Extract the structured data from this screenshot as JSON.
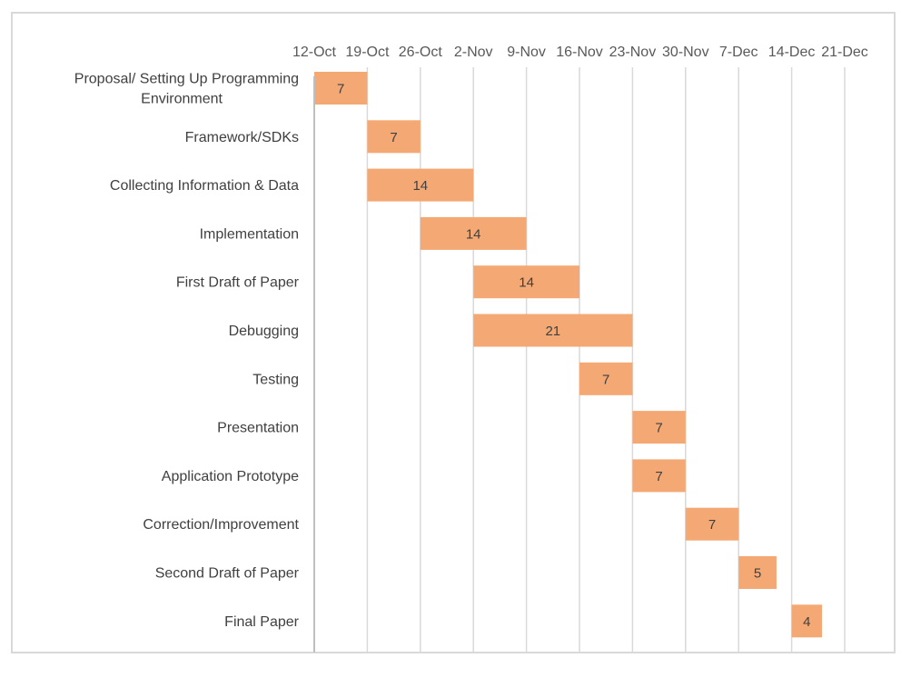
{
  "chart_data": {
    "type": "bar",
    "orientation": "horizontal",
    "x_ticks": [
      "12-Oct",
      "19-Oct",
      "26-Oct",
      "2-Nov",
      "9-Nov",
      "16-Nov",
      "23-Nov",
      "30-Nov",
      "7-Dec",
      "14-Dec",
      "21-Dec"
    ],
    "xlim": [
      "2020-10-12",
      "2020-12-28"
    ],
    "grid": true,
    "legend": "none",
    "bar_color": "#f4a873",
    "tasks": [
      {
        "label": "Proposal/ Setting Up Programming Environment",
        "label_lines": [
          "Proposal/ Setting Up Programming",
          "Environment"
        ],
        "start": "2020-10-12",
        "duration": 7
      },
      {
        "label": "Framework/SDKs",
        "start": "2020-10-19",
        "duration": 7
      },
      {
        "label": "Collecting Information & Data",
        "start": "2020-10-19",
        "duration": 14
      },
      {
        "label": "Implementation",
        "start": "2020-10-26",
        "duration": 14
      },
      {
        "label": "First Draft of  Paper",
        "start": "2020-11-02",
        "duration": 14
      },
      {
        "label": "Debugging",
        "start": "2020-11-02",
        "duration": 21
      },
      {
        "label": "Testing",
        "start": "2020-11-16",
        "duration": 7
      },
      {
        "label": "Presentation",
        "start": "2020-11-23",
        "duration": 7
      },
      {
        "label": "Application Prototype",
        "start": "2020-11-23",
        "duration": 7
      },
      {
        "label": "Correction/Improvement",
        "start": "2020-11-30",
        "duration": 7
      },
      {
        "label": "Second Draft of Paper",
        "start": "2020-12-07",
        "duration": 5
      },
      {
        "label": "Final Paper",
        "start": "2020-12-14",
        "duration": 4
      }
    ]
  }
}
